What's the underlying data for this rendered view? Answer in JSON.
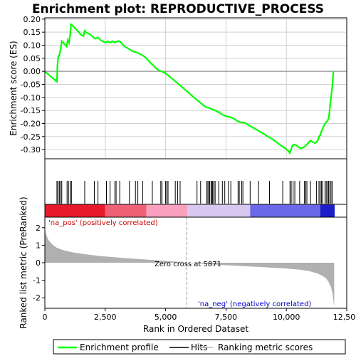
{
  "chart_data": {
    "type": "line",
    "title": "Enrichment plot: REPRODUCTIVE_PROCESS",
    "top_panel": {
      "ylabel": "Enrichment score (ES)",
      "ylim": [
        -0.335,
        0.205
      ],
      "yticks": [
        "0.20",
        "0.15",
        "0.10",
        "0.05",
        "0.00",
        "-0.05",
        "-0.10",
        "-0.15",
        "-0.20",
        "-0.25",
        "-0.30"
      ],
      "ytick_values": [
        0.2,
        0.15,
        0.1,
        0.05,
        0.0,
        -0.05,
        -0.1,
        -0.15,
        -0.2,
        -0.25,
        -0.3
      ],
      "grid": true,
      "series": [
        {
          "name": "Enrichment profile",
          "color": "#00ff00",
          "x": [
            0,
            500,
            520,
            560,
            600,
            660,
            700,
            760,
            800,
            850,
            900,
            950,
            1000,
            1050,
            1080,
            1150,
            1200,
            1300,
            1400,
            1500,
            1600,
            1650,
            1700,
            1800,
            1900,
            2000,
            2100,
            2200,
            2300,
            2400,
            2500,
            2600,
            2700,
            2800,
            2900,
            3000,
            3100,
            3200,
            3300,
            3400,
            3500,
            3600,
            3700,
            3800,
            3900,
            4000,
            4100,
            4200,
            4300,
            4400,
            4500,
            4600,
            4700,
            4800,
            4900,
            5000,
            5100,
            5200,
            5300,
            5400,
            5500,
            5600,
            5700,
            5800,
            5900,
            6000,
            6100,
            6200,
            6300,
            6400,
            6500,
            6600,
            6700,
            6800,
            6900,
            7000,
            7100,
            7200,
            7300,
            7400,
            7500,
            7600,
            7700,
            7800,
            7900,
            8000,
            8100,
            8200,
            8300,
            8400,
            8500,
            8600,
            8700,
            8800,
            8900,
            9000,
            9100,
            9200,
            9300,
            9400,
            9500,
            9600,
            9700,
            9800,
            9900,
            10000,
            10100,
            10150,
            10200,
            10250,
            10300,
            10400,
            10500,
            10600,
            10700,
            10800,
            10900,
            11000,
            11100,
            11200,
            11300,
            11350,
            11400,
            11450,
            11500,
            11550,
            11600,
            11650,
            11700,
            11750,
            11780,
            11800,
            11850,
            11900,
            11950
          ],
          "y": [
            0.0,
            -0.04,
            0.02,
            0.06,
            0.06,
            0.09,
            0.115,
            0.11,
            0.105,
            0.1,
            0.095,
            0.12,
            0.11,
            0.14,
            0.18,
            0.175,
            0.17,
            0.16,
            0.15,
            0.14,
            0.135,
            0.155,
            0.15,
            0.145,
            0.14,
            0.13,
            0.125,
            0.13,
            0.12,
            0.115,
            0.11,
            0.115,
            0.11,
            0.115,
            0.11,
            0.115,
            0.115,
            0.105,
            0.095,
            0.09,
            0.085,
            0.078,
            0.075,
            0.072,
            0.068,
            0.063,
            0.058,
            0.05,
            0.04,
            0.03,
            0.022,
            0.012,
            0.005,
            0.001,
            -0.003,
            -0.008,
            -0.015,
            -0.023,
            -0.03,
            -0.038,
            -0.046,
            -0.054,
            -0.062,
            -0.07,
            -0.078,
            -0.086,
            -0.094,
            -0.102,
            -0.11,
            -0.117,
            -0.125,
            -0.133,
            -0.138,
            -0.14,
            -0.144,
            -0.148,
            -0.152,
            -0.157,
            -0.163,
            -0.168,
            -0.172,
            -0.174,
            -0.176,
            -0.18,
            -0.186,
            -0.192,
            -0.195,
            -0.196,
            -0.198,
            -0.204,
            -0.21,
            -0.215,
            -0.22,
            -0.225,
            -0.231,
            -0.236,
            -0.242,
            -0.248,
            -0.253,
            -0.259,
            -0.265,
            -0.272,
            -0.279,
            -0.286,
            -0.292,
            -0.298,
            -0.307,
            -0.313,
            -0.298,
            -0.285,
            -0.28,
            -0.283,
            -0.29,
            -0.295,
            -0.292,
            -0.285,
            -0.275,
            -0.265,
            -0.272,
            -0.275,
            -0.265,
            -0.25,
            -0.245,
            -0.23,
            -0.22,
            -0.21,
            -0.2,
            -0.195,
            -0.19,
            -0.18,
            -0.16,
            -0.14,
            -0.1,
            -0.06,
            0.0
          ]
        }
      ]
    },
    "hits": [
      500,
      540,
      600,
      650,
      700,
      920,
      980,
      1050,
      1100,
      1650,
      2050,
      2200,
      2550,
      2700,
      2900,
      2950,
      3100,
      3500,
      3750,
      3850,
      4050,
      4450,
      4800,
      4850,
      5000,
      5050,
      5100,
      5400,
      5500,
      5600,
      6300,
      6450,
      6700,
      6750,
      6800,
      6820,
      6880,
      6920,
      6950,
      7000,
      7050,
      7200,
      7350,
      7450,
      7600,
      7700,
      8000,
      8050,
      8150,
      8200,
      8500,
      8850,
      9300,
      9850,
      10150,
      10200,
      10280,
      10350,
      10550,
      10750,
      10800,
      10850,
      11000,
      11250,
      11350,
      11400,
      11450,
      11500,
      11600,
      11650,
      11700,
      11750,
      11800,
      11850,
      11900
    ],
    "heatmap": {
      "colors": [
        "#e8192b",
        "#f06075",
        "#f8a0be",
        "#d8c8f0",
        "#6a6ae8",
        "#1e1ec8"
      ],
      "stops": [
        0,
        2500,
        4200,
        5900,
        8500,
        11400,
        12000
      ]
    },
    "bottom_panel": {
      "ylabel": "Ranked list metric (PreRanked)",
      "ylim": [
        -2.6,
        2.6
      ],
      "yticks": [
        "2",
        "1",
        "0",
        "-1",
        "-2"
      ],
      "ytick_values": [
        2,
        1,
        0,
        -1,
        -2
      ],
      "fill_color": "#b0b0b0",
      "metric_x": [
        0,
        50,
        150,
        300,
        500,
        800,
        1200,
        1700,
        2300,
        3000,
        3700,
        4400,
        5000,
        5500,
        5871,
        6300,
        7000,
        8000,
        9000,
        10000,
        10600,
        11000,
        11300,
        11500,
        11650,
        11750,
        11850,
        11920,
        11950,
        11980
      ],
      "metric_y": [
        1.9,
        1.6,
        1.3,
        1.05,
        0.85,
        0.7,
        0.58,
        0.48,
        0.38,
        0.3,
        0.23,
        0.16,
        0.1,
        0.05,
        0.0,
        -0.04,
        -0.1,
        -0.18,
        -0.25,
        -0.33,
        -0.4,
        -0.5,
        -0.62,
        -0.75,
        -0.9,
        -1.1,
        -1.4,
        -1.8,
        -2.2,
        -2.5
      ],
      "zero_cross_label": "Zero cross at 5871",
      "zero_cross": 5871,
      "pos_label": "'na_pos' (positively correlated)",
      "neg_label": "'na_neg' (negatively correlated)"
    },
    "xlabel": "Rank in Ordered Dataset",
    "xlim": [
      0,
      12500
    ],
    "xticks": [
      "0",
      "2,500",
      "5,000",
      "7,500",
      "10,000",
      "12,500"
    ],
    "xtick_values": [
      0,
      2500,
      5000,
      7500,
      10000,
      12500
    ],
    "legend": {
      "placement": "bottom-center",
      "entries": [
        {
          "label": "Enrichment profile",
          "color": "#00ff00"
        },
        {
          "label": "Hits",
          "color": "#000000"
        },
        {
          "label": "Ranking metric scores",
          "color": "#b0b0b0"
        }
      ]
    }
  }
}
